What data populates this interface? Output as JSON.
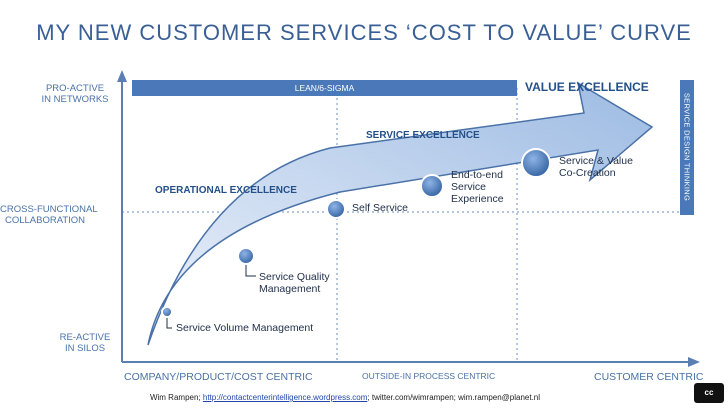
{
  "title": "MY NEW CUSTOMER SERVICES ‘COST TO VALUE’ CURVE",
  "y_axis": {
    "top": "PRO-ACTIVE\nIN NETWORKS",
    "middle": "CROSS-FUNCTIONAL\nCOLLABORATION",
    "bottom": "RE-ACTIVE\nIN SILOS"
  },
  "x_axis": {
    "left": "COMPANY/PRODUCT/COST CENTRIC",
    "middle": "OUTSIDE-IN PROCESS CENTRIC",
    "right": "CUSTOMER CENTRIC"
  },
  "banner": "LEAN/6-SIGMA",
  "value_excellence": "VALUE EXCELLENCE",
  "service_design": "SERVICE DESIGN THINKING",
  "zones": {
    "operational": "OPERATIONAL EXCELLENCE",
    "service": "SERVICE EXCELLENCE"
  },
  "points": {
    "volume": "Service Volume Management",
    "quality": "Service Quality\nManagement",
    "self": "Self Service",
    "e2e": "End-to-end\nService\nExperience",
    "cocreation": "Service & Value\nCo-Creation"
  },
  "footer": {
    "author": "Wim Rampen; ",
    "link": "http://contactcenterintelligence.wordpress.com",
    "rest": "; twitter.com/wimrampen; wim.rampen@planet.nl"
  },
  "badge": "cc",
  "colors": {
    "title": "#3a5f95",
    "banner": "#4a78b8",
    "arrow_fill": "#a9c3e6",
    "dots": "#4a78b8"
  }
}
